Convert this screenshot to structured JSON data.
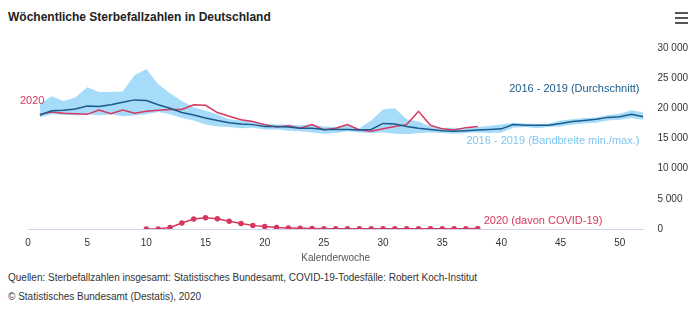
{
  "chart_data": {
    "type": "line",
    "title": "Wöchentliche Sterbefallzahlen in Deutschland",
    "x_label": "Kalenderwoche",
    "source": "Quellen: Sterbefallzahlen insgesamt: Statistisches Bundesamt, COVID-19-Todesfälle: Robert Koch-Institut",
    "credit": "© Statistisches Bundesamt (Destatis), 2020",
    "x": [
      1,
      2,
      3,
      4,
      5,
      6,
      7,
      8,
      9,
      10,
      11,
      12,
      13,
      14,
      15,
      16,
      17,
      18,
      19,
      20,
      21,
      22,
      23,
      24,
      25,
      26,
      27,
      28,
      29,
      30,
      31,
      32,
      33,
      34,
      35,
      36,
      37,
      38,
      39,
      40,
      41,
      42,
      43,
      44,
      45,
      46,
      47,
      48,
      49,
      50,
      51,
      52
    ],
    "series": [
      {
        "name": "2016 - 2019 (Bandbreite min./max.)",
        "type": "band",
        "color": "#a6dcfa",
        "low": [
          18500,
          19000,
          18900,
          18900,
          19000,
          18800,
          19000,
          18700,
          18800,
          19000,
          19400,
          19000,
          18400,
          18000,
          17300,
          17000,
          16900,
          16700,
          16800,
          16500,
          16500,
          16300,
          16200,
          16000,
          15800,
          15900,
          16200,
          16000,
          15900,
          16000,
          15800,
          15700,
          15900,
          16000,
          15900,
          15800,
          15900,
          16000,
          15900,
          16000,
          16800,
          16900,
          16700,
          16900,
          17000,
          17300,
          17500,
          17600,
          18000,
          18100,
          18400,
          18100
        ],
        "high": [
          20700,
          22000,
          21200,
          21800,
          23500,
          22700,
          22700,
          22800,
          25500,
          26500,
          24000,
          22500,
          21200,
          20200,
          19600,
          19000,
          18200,
          18000,
          17800,
          17400,
          17300,
          17300,
          17200,
          17300,
          17000,
          16900,
          17100,
          16700,
          18000,
          19800,
          20000,
          18200,
          17800,
          17000,
          16800,
          16800,
          16700,
          16900,
          17100,
          17300,
          17600,
          17500,
          17400,
          17500,
          18000,
          18200,
          18400,
          18500,
          18900,
          19100,
          19700,
          19300
        ]
      },
      {
        "name": "2016 - 2019 (Durchschnitt)",
        "color": "#1b5a8a",
        "marker": "none",
        "values": [
          18900,
          19600,
          19700,
          19900,
          20400,
          20300,
          20600,
          21000,
          21400,
          21300,
          20600,
          20000,
          19300,
          18900,
          18400,
          18000,
          17600,
          17400,
          17300,
          17000,
          17000,
          16900,
          16700,
          16700,
          16500,
          16500,
          16500,
          16400,
          16500,
          17500,
          17400,
          17000,
          16700,
          16500,
          16300,
          16200,
          16300,
          16400,
          16500,
          16600,
          17300,
          17200,
          17200,
          17200,
          17500,
          17800,
          18000,
          18200,
          18500,
          18600,
          19000,
          18600
        ]
      },
      {
        "name": "2020",
        "color": "#d6385e",
        "marker": "none",
        "values": [
          19000,
          19400,
          19200,
          19100,
          19000,
          19700,
          19100,
          19700,
          19200,
          19500,
          19700,
          19800,
          19800,
          20600,
          20500,
          19300,
          18700,
          18100,
          17800,
          17300,
          16900,
          17100,
          16700,
          17300,
          16400,
          16700,
          17300,
          16400,
          16200,
          16600,
          17000,
          17300,
          19500,
          17200,
          16600,
          16400,
          16800,
          17000,
          null,
          null,
          null,
          null,
          null,
          null,
          null,
          null,
          null,
          null,
          null,
          null,
          null,
          null
        ]
      },
      {
        "name": "2020 (davon COVID-19)",
        "color": "#d6385e",
        "marker": "circle",
        "values": [
          null,
          null,
          null,
          null,
          null,
          null,
          null,
          null,
          null,
          0,
          20,
          250,
          1000,
          1650,
          1850,
          1700,
          1300,
          900,
          600,
          400,
          250,
          170,
          120,
          80,
          60,
          50,
          40,
          30,
          30,
          30,
          30,
          30,
          40,
          40,
          50,
          50,
          60,
          80,
          null,
          null,
          null,
          null,
          null,
          null,
          null,
          null,
          null,
          null,
          null,
          null,
          null,
          null
        ]
      }
    ],
    "xlim": [
      0,
      52
    ],
    "xticks": [
      0,
      5,
      10,
      15,
      20,
      25,
      30,
      35,
      40,
      45,
      50
    ],
    "ylim": [
      0,
      30000
    ],
    "yticks": [
      0,
      {
        "value": 5000,
        "label": "5 000"
      },
      {
        "value": 10000,
        "label": "10 000"
      },
      {
        "value": 15000,
        "label": "15 000"
      },
      {
        "value": 20000,
        "label": "20 000"
      },
      {
        "value": 25000,
        "label": "25 000"
      },
      {
        "value": 30000,
        "label": "30 000"
      }
    ],
    "grid": false,
    "legend": "none"
  }
}
